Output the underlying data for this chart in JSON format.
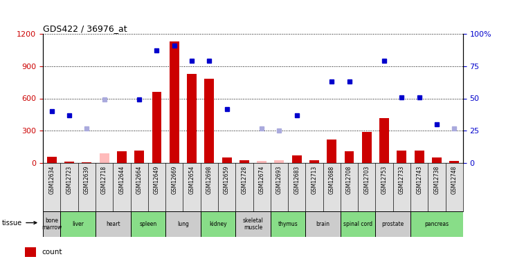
{
  "title": "GDS422 / 36976_at",
  "samples": [
    "GSM12634",
    "GSM12723",
    "GSM12639",
    "GSM12718",
    "GSM12644",
    "GSM12664",
    "GSM12649",
    "GSM12669",
    "GSM12654",
    "GSM12698",
    "GSM12659",
    "GSM12728",
    "GSM12674",
    "GSM12693",
    "GSM12683",
    "GSM12713",
    "GSM12688",
    "GSM12708",
    "GSM12703",
    "GSM12753",
    "GSM12733",
    "GSM12743",
    "GSM12738",
    "GSM12748"
  ],
  "tissues": [
    {
      "name": "bone\nmarrow",
      "span": [
        0,
        1
      ],
      "color": "#cccccc"
    },
    {
      "name": "liver",
      "span": [
        1,
        3
      ],
      "color": "#88dd88"
    },
    {
      "name": "heart",
      "span": [
        3,
        5
      ],
      "color": "#cccccc"
    },
    {
      "name": "spleen",
      "span": [
        5,
        7
      ],
      "color": "#88dd88"
    },
    {
      "name": "lung",
      "span": [
        7,
        9
      ],
      "color": "#cccccc"
    },
    {
      "name": "kidney",
      "span": [
        9,
        11
      ],
      "color": "#88dd88"
    },
    {
      "name": "skeletal\nmuscle",
      "span": [
        11,
        13
      ],
      "color": "#cccccc"
    },
    {
      "name": "thymus",
      "span": [
        13,
        15
      ],
      "color": "#88dd88"
    },
    {
      "name": "brain",
      "span": [
        15,
        17
      ],
      "color": "#cccccc"
    },
    {
      "name": "spinal cord",
      "span": [
        17,
        19
      ],
      "color": "#88dd88"
    },
    {
      "name": "prostate",
      "span": [
        19,
        21
      ],
      "color": "#cccccc"
    },
    {
      "name": "pancreas",
      "span": [
        21,
        24
      ],
      "color": "#88dd88"
    }
  ],
  "bar_heights_present": [
    60,
    15,
    10,
    0,
    110,
    120,
    660,
    1130,
    830,
    780,
    50,
    30,
    0,
    0,
    70,
    25,
    220,
    110,
    290,
    420,
    115,
    115,
    55,
    20
  ],
  "bar_heights_absent": [
    0,
    0,
    0,
    90,
    0,
    0,
    0,
    0,
    0,
    0,
    0,
    0,
    20,
    30,
    0,
    0,
    0,
    0,
    0,
    0,
    0,
    0,
    0,
    0
  ],
  "pct_present": [
    40,
    37,
    null,
    null,
    null,
    49,
    87,
    91,
    79,
    79,
    42,
    null,
    null,
    null,
    37,
    null,
    63,
    63,
    null,
    79,
    51,
    51,
    30,
    null
  ],
  "pct_absent": [
    null,
    null,
    27,
    49,
    null,
    null,
    null,
    null,
    null,
    null,
    null,
    null,
    27,
    25,
    null,
    null,
    null,
    null,
    null,
    null,
    null,
    null,
    null,
    27
  ],
  "count_color": "#cc0000",
  "rank_color": "#0000cc",
  "absent_count_color": "#ffbbbb",
  "absent_rank_color": "#aaaadd",
  "ylim_left": [
    0,
    1200
  ],
  "ylim_right": [
    0,
    100
  ],
  "yticks_left": [
    0,
    300,
    600,
    900,
    1200
  ],
  "yticks_right": [
    0,
    25,
    50,
    75,
    100
  ],
  "bar_width": 0.55
}
